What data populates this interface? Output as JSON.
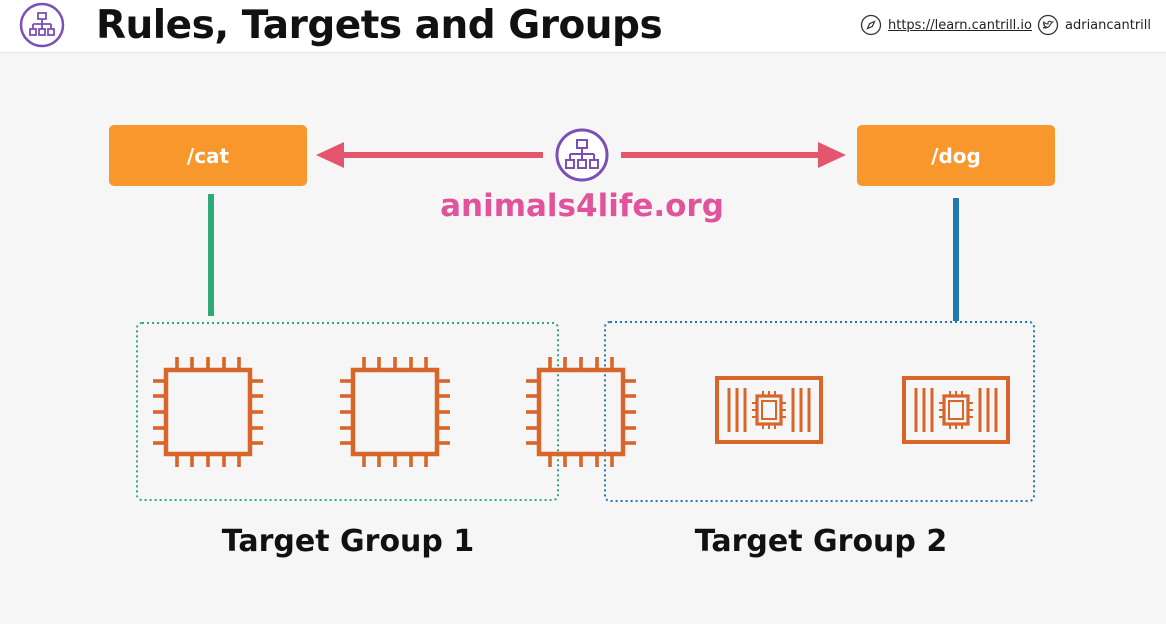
{
  "header": {
    "title": "Rules, Targets and Groups",
    "url": "https://learn.cantrill.io",
    "twitter": "adriancantrill",
    "logo_icon": "load-balancer-icon"
  },
  "diagram": {
    "load_balancer_domain": "animals4life.org",
    "rules": [
      {
        "label": "/cat"
      },
      {
        "label": "/dog"
      }
    ],
    "target_groups": [
      {
        "label": "Target Group 1"
      },
      {
        "label": "Target Group 2"
      }
    ]
  },
  "colors": {
    "rule_box": "#f7972c",
    "arrow": "#e4566d",
    "domain_text": "#e1549b",
    "load_balancer_icon": "#7b4fb8",
    "group1_border": "#2eaa7a",
    "group2_border": "#1f78b4",
    "instance": "#d8652a"
  }
}
